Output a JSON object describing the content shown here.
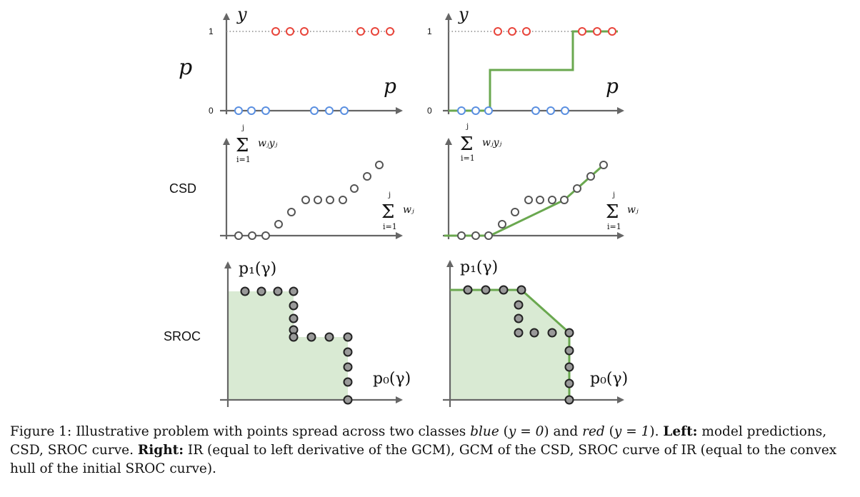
{
  "row_labels": {
    "p": "p",
    "csd": "CSD",
    "sroc": "SROC"
  },
  "p_panel": {
    "y_label": "y",
    "x_label": "p",
    "tick_one": "1",
    "tick_zero": "0"
  },
  "csd_panel": {
    "y_sum_symbol": "Σ",
    "y_sum_top": "j",
    "y_sum_bottom": "i=1",
    "y_sum_term": "wⱼyⱼ",
    "x_sum_symbol": "Σ",
    "x_sum_top": "j",
    "x_sum_bottom": "i=1",
    "x_sum_term": "wⱼ"
  },
  "sroc_panel": {
    "y_label": "p₁(γ)",
    "x_label": "p₀(γ)"
  },
  "colors": {
    "red": "#e8443a",
    "blue": "#5a8fe0",
    "gray": "#555555",
    "green": "#6aa84f",
    "fill": "#d9ead3",
    "axis": "#666666"
  },
  "caption": {
    "fig": "Figure 1: Illustrative problem with points spread across two classes ",
    "blue": "blue",
    "mid1": " (",
    "blue_eq": "y = 0",
    "mid2": ") and ",
    "red": "red",
    "mid3": " (",
    "red_eq": "y = 1",
    "mid4": "). ",
    "left_bold": "Left:",
    "left_text": " model predictions, CSD, SROC curve. ",
    "right_bold": "Right:",
    "right_text": " IR (equal to left derivative of the GCM), GCM of the CSD, SROC curve of IR (equal to the convex hull of the initial SROC curve)."
  }
}
